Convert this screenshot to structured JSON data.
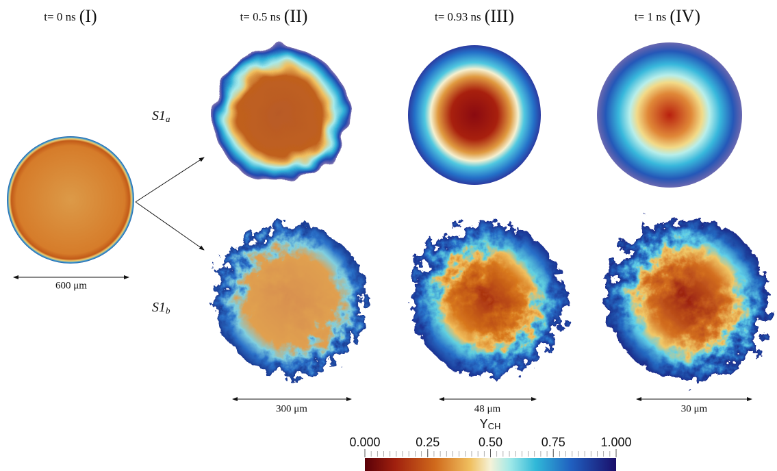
{
  "columns": [
    {
      "time": "t= 0 ns",
      "stage": "(I)"
    },
    {
      "time": "t= 0.5 ns",
      "stage": "(II)"
    },
    {
      "time": "t= 0.93 ns",
      "stage": "(III)"
    },
    {
      "time": "t= 1 ns",
      "stage": "(IV)"
    }
  ],
  "rows": [
    {
      "label": "S1",
      "sub": "a"
    },
    {
      "label": "S1",
      "sub": "b"
    }
  ],
  "scale_bars": [
    "600 μm",
    "300 μm",
    "48 μm",
    "30 μm"
  ],
  "colorbar": {
    "title": "Y",
    "title_sub": "CH",
    "range": [
      0,
      1
    ],
    "ticks": [
      {
        "value": 0,
        "label": "0.000"
      },
      {
        "value": 0.25,
        "label": "0.25"
      },
      {
        "value": 0.5,
        "label": "0.50"
      },
      {
        "value": 0.75,
        "label": "0.75"
      },
      {
        "value": 1,
        "label": "1.000"
      }
    ]
  }
}
